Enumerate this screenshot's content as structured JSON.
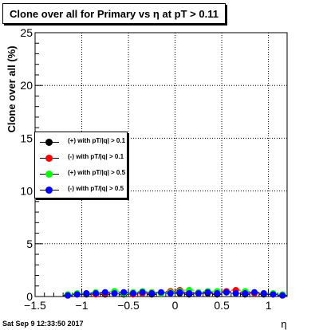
{
  "chart_data": {
    "type": "scatter",
    "title": "Clone  over all for Primary vs   η at pT > 0.11",
    "xlabel": "η",
    "ylabel": "Clone  over all (%)",
    "xlim": [
      -1.5,
      1.2
    ],
    "ylim": [
      0,
      25
    ],
    "x_ticks": [
      -1.5,
      -1,
      -0.5,
      0,
      0.5,
      1
    ],
    "x_tick_labels": [
      "−1.5",
      "−1",
      "−0.5",
      "0",
      "0.5",
      "1"
    ],
    "y_ticks": [
      0,
      5,
      10,
      15,
      20,
      25
    ],
    "y_tick_labels": [
      "0",
      "5",
      "10",
      "15",
      "20",
      "25"
    ],
    "grid": true,
    "legend_placement": "middle-left",
    "x": [
      -1.15,
      -1.05,
      -0.95,
      -0.85,
      -0.75,
      -0.65,
      -0.55,
      -0.45,
      -0.35,
      -0.25,
      -0.15,
      -0.05,
      0.05,
      0.15,
      0.25,
      0.35,
      0.45,
      0.55,
      0.65,
      0.75,
      0.85,
      0.95,
      1.05,
      1.15
    ],
    "series": [
      {
        "name": "(+) with pT/|q| > 0.1",
        "color": "#000000",
        "values": [
          0.1,
          0.2,
          0.2,
          0.3,
          0.2,
          0.3,
          0.2,
          0.3,
          0.3,
          0.2,
          0.3,
          0.4,
          0.3,
          0.2,
          0.3,
          0.3,
          0.2,
          0.4,
          0.3,
          0.2,
          0.3,
          0.2,
          0.2,
          0.1
        ]
      },
      {
        "name": "(-) with pT/|q| > 0.1",
        "color": "#ff0000",
        "values": [
          0.1,
          0.2,
          0.3,
          0.2,
          0.3,
          0.3,
          0.4,
          0.2,
          0.3,
          0.4,
          0.3,
          0.5,
          0.6,
          0.4,
          0.3,
          0.4,
          0.3,
          0.5,
          0.6,
          0.4,
          0.3,
          0.3,
          0.2,
          0.1
        ]
      },
      {
        "name": "(+) with pT/|q| > 0.5",
        "color": "#00ff00",
        "values": [
          0.2,
          0.3,
          0.3,
          0.4,
          0.4,
          0.5,
          0.3,
          0.4,
          0.5,
          0.4,
          0.3,
          0.4,
          0.5,
          0.6,
          0.4,
          0.5,
          0.5,
          0.4,
          0.3,
          0.5,
          0.4,
          0.3,
          0.3,
          0.2
        ]
      },
      {
        "name": "(-) with pT/|q| > 0.5",
        "color": "#0000ff",
        "values": [
          0.1,
          0.2,
          0.3,
          0.3,
          0.4,
          0.3,
          0.4,
          0.3,
          0.4,
          0.3,
          0.4,
          0.3,
          0.4,
          0.3,
          0.3,
          0.4,
          0.3,
          0.4,
          0.3,
          0.3,
          0.4,
          0.3,
          0.2,
          0.1
        ]
      }
    ]
  },
  "footer": "Sat Sep  9 12:33:50 2017"
}
